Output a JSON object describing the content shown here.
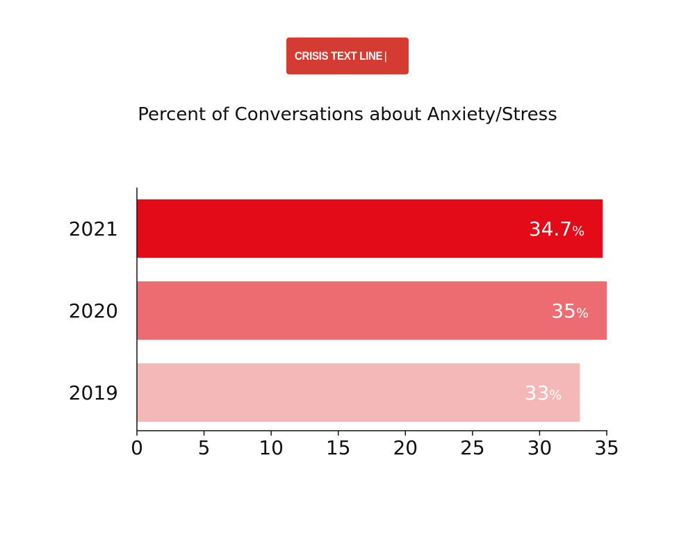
{
  "brand": {
    "logo_text": "CRISIS TEXT LINE",
    "logo_bar": "|",
    "logo_color": "#d33b33"
  },
  "chart_data": {
    "type": "bar",
    "orientation": "horizontal",
    "title": "Percent of Conversations about Anxiety/Stress",
    "categories": [
      "2021",
      "2020",
      "2019"
    ],
    "values": [
      34.7,
      35,
      33
    ],
    "value_labels": [
      "34.7",
      "35",
      "33"
    ],
    "value_unit": "%",
    "bar_colors": [
      "#e20b17",
      "#ec6c72",
      "#f5b8b9"
    ],
    "xlim": [
      0,
      35
    ],
    "xticks": [
      "0",
      "5",
      "10",
      "15",
      "20",
      "25",
      "30",
      "35"
    ],
    "xlabel": "",
    "ylabel": "",
    "grid": false
  }
}
